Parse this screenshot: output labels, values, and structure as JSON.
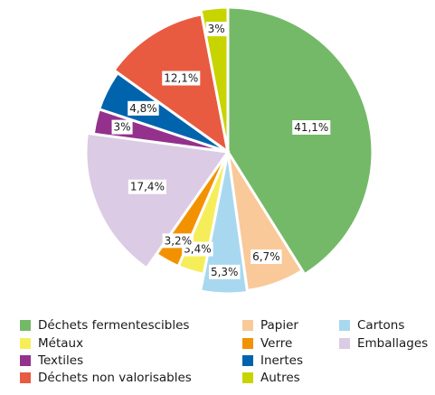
{
  "chart_data": {
    "type": "pie",
    "categories": [
      "Déchets fermentescibles",
      "Papier",
      "Cartons",
      "Métaux",
      "Verre",
      "Emballages",
      "Textiles",
      "Inertes",
      "Déchets non valorisables",
      "Autres"
    ],
    "values": [
      41.1,
      6.7,
      5.3,
      3.4,
      3.2,
      17.4,
      3,
      4.8,
      12.1,
      3
    ],
    "value_labels": [
      "41,1%",
      "6,7%",
      "5,3%",
      "3,4%",
      "3,2%",
      "17,4%",
      "3%",
      "4,8%",
      "12,1%",
      "3%"
    ],
    "colors": [
      "#73b967",
      "#f9c99a",
      "#a8d8f0",
      "#f5ee5a",
      "#f39200",
      "#dccbe4",
      "#93318c",
      "#0064ad",
      "#e85b40",
      "#c8d400"
    ]
  }
}
